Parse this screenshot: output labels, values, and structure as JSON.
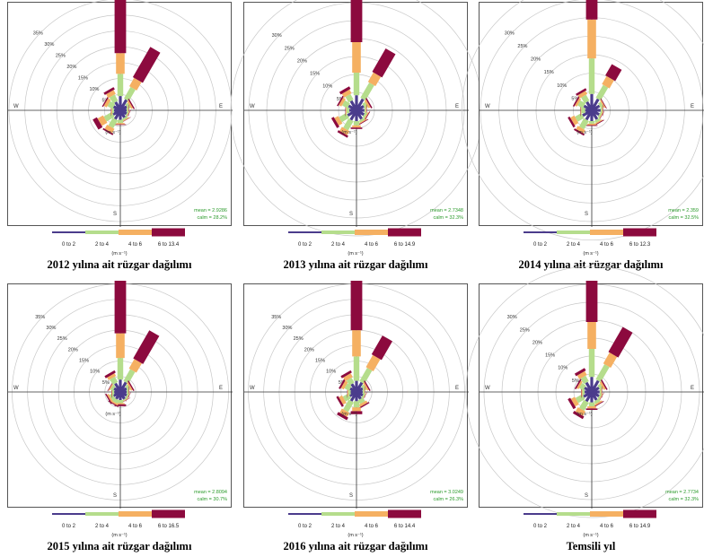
{
  "colors": {
    "bin1": "#4b3c8c",
    "bin2": "#b5dd8c",
    "bin3": "#f5b062",
    "bin4": "#8c0a3e",
    "grid": "#c8c8c8",
    "axis": "#333333",
    "stats": "#2a9a2a"
  },
  "compass": {
    "w": "W",
    "e": "E",
    "s": "S"
  },
  "unit_label": "(m s⁻¹)",
  "chart_data": [
    {
      "type": "windrose",
      "caption": "2012 yılına ait rüzgar dağılımı",
      "legend_labels": [
        "0 to 2",
        "2 to 4",
        "4 to 6",
        "6 to 13.4"
      ],
      "ring_labels": [
        "5%",
        "10%",
        "15%",
        "20%",
        "25%",
        "30%",
        "35%"
      ],
      "mean": "mean = 2.9286",
      "calm": "calm = 28.2%",
      "max_pct": 35,
      "directions_deg": [
        0,
        30,
        60,
        90,
        120,
        150,
        180,
        210,
        240,
        270,
        300,
        330
      ],
      "cumulative_pct": [
        [
          4.5,
          11.5,
          18,
          36
        ],
        [
          3.8,
          8,
          11,
          22
        ],
        [
          2.3,
          3.2,
          3.8,
          4.2
        ],
        [
          2.0,
          2.4,
          2.6,
          2.7
        ],
        [
          2.2,
          2.6,
          2.8,
          2.9
        ],
        [
          2.6,
          3.2,
          3.5,
          3.6
        ],
        [
          3.0,
          4.0,
          4.4,
          4.6
        ],
        [
          3.2,
          6.0,
          7.5,
          8.0
        ],
        [
          2.6,
          5.5,
          7.5,
          9.0
        ],
        [
          2.0,
          2.6,
          2.9,
          3.0
        ],
        [
          2.4,
          4.2,
          5.2,
          5.6
        ],
        [
          3.0,
          5.2,
          6.6,
          7.4
        ]
      ]
    },
    {
      "type": "windrose",
      "caption": "2013 yılına ait rüzgar dağılımı",
      "legend_labels": [
        "0 to 2",
        "2 to 4",
        "4 to 6",
        "6 to 14.9"
      ],
      "ring_labels": [
        "5%",
        "10%",
        "15%",
        "20%",
        "25%",
        "30%"
      ],
      "mean": "mean = 2.7348",
      "calm": "calm = 32.3%",
      "max_pct": 31,
      "directions_deg": [
        0,
        30,
        60,
        90,
        120,
        150,
        180,
        210,
        240,
        270,
        300,
        330
      ],
      "cumulative_pct": [
        [
          4.2,
          10.5,
          19,
          31
        ],
        [
          3.6,
          8.5,
          11.5,
          19
        ],
        [
          2.3,
          3.2,
          3.8,
          4.2
        ],
        [
          2.2,
          2.6,
          2.8,
          2.9
        ],
        [
          2.4,
          3.0,
          3.3,
          3.5
        ],
        [
          2.8,
          3.4,
          3.7,
          3.9
        ],
        [
          3.0,
          4.2,
          4.8,
          5.2
        ],
        [
          3.1,
          6.0,
          7.3,
          7.9
        ],
        [
          2.8,
          5.2,
          6.4,
          7.2
        ],
        [
          2.0,
          2.8,
          3.0,
          3.1
        ],
        [
          2.5,
          4.2,
          5.0,
          5.4
        ],
        [
          3.0,
          4.8,
          6.0,
          6.8
        ]
      ]
    },
    {
      "type": "windrose",
      "caption": "2014 yılına ait rüzgar dağılımı",
      "legend_labels": [
        "0 to 2",
        "2 to 4",
        "4 to 6",
        "6 to 12.3"
      ],
      "ring_labels": [
        "5%",
        "10%",
        "15%",
        "20%",
        "25%",
        "30%"
      ],
      "mean": "mean = 2.359",
      "calm": "calm = 32.5%",
      "max_pct": 30,
      "directions_deg": [
        0,
        30,
        60,
        90,
        120,
        150,
        180,
        210,
        240,
        270,
        300,
        330
      ],
      "cumulative_pct": [
        [
          4.4,
          14,
          24.5,
          31
        ],
        [
          3.5,
          7.5,
          10,
          13.5
        ],
        [
          2.4,
          3.2,
          3.6,
          3.8
        ],
        [
          2.4,
          2.8,
          3.0,
          3.1
        ],
        [
          2.3,
          2.8,
          3.0,
          3.1
        ],
        [
          2.8,
          3.5,
          3.8,
          4.0
        ],
        [
          2.9,
          3.6,
          4.0,
          4.2
        ],
        [
          2.9,
          5.5,
          6.5,
          7.0
        ],
        [
          2.8,
          4.8,
          6.0,
          6.6
        ],
        [
          1.8,
          2.8,
          3.0,
          3.1
        ],
        [
          2.4,
          4.0,
          4.6,
          5.0
        ],
        [
          2.6,
          4.4,
          5.4,
          6.0
        ]
      ]
    },
    {
      "type": "windrose",
      "caption": "2015 yılına ait rüzgar dağılımı",
      "legend_labels": [
        "0 to 2",
        "2 to 4",
        "4 to 6",
        "6 to 16.5"
      ],
      "ring_labels": [
        "5%",
        "10%",
        "15%",
        "20%",
        "25%",
        "30%",
        "35%"
      ],
      "mean": "mean = 2.8094",
      "calm": "calm = 30.7%",
      "max_pct": 36,
      "directions_deg": [
        0,
        30,
        60,
        90,
        120,
        150,
        180,
        210,
        240,
        270,
        300,
        330
      ],
      "cumulative_pct": [
        [
          4.0,
          11,
          19,
          36
        ],
        [
          3.6,
          8,
          11.5,
          22
        ],
        [
          2.3,
          3.2,
          3.8,
          4.2
        ],
        [
          2.1,
          2.6,
          2.8,
          2.9
        ],
        [
          2.3,
          2.8,
          3.0,
          3.1
        ],
        [
          2.6,
          3.0,
          3.2,
          3.3
        ],
        [
          2.6,
          3.6,
          4.0,
          4.6
        ],
        [
          2.6,
          3.8,
          4.3,
          4.6
        ],
        [
          2.5,
          3.6,
          4.2,
          4.6
        ],
        [
          2.0,
          2.6,
          2.8,
          2.9
        ],
        [
          2.3,
          3.2,
          3.6,
          3.8
        ],
        [
          3.2,
          5.2,
          6.2,
          7.0
        ]
      ]
    },
    {
      "type": "windrose",
      "caption": "2016 yılına ait rüzgar dağılımı",
      "legend_labels": [
        "0 to 2",
        "2 to 4",
        "4 to 6",
        "6 to 14.4"
      ],
      "ring_labels": [
        "5%",
        "10%",
        "15%",
        "20%",
        "25%",
        "30%",
        "35%"
      ],
      "mean": "mean = 3.0249",
      "calm": "calm = 26.3%",
      "max_pct": 36,
      "directions_deg": [
        0,
        30,
        60,
        90,
        120,
        150,
        180,
        210,
        240,
        270,
        300,
        330
      ],
      "cumulative_pct": [
        [
          3.6,
          11.5,
          20,
          36
        ],
        [
          3.5,
          8.5,
          13,
          20
        ],
        [
          2.3,
          3.2,
          3.8,
          4.2
        ],
        [
          2.0,
          2.5,
          2.7,
          2.8
        ],
        [
          2.3,
          2.8,
          3.0,
          3.1
        ],
        [
          2.6,
          4.0,
          4.8,
          5.2
        ],
        [
          3.0,
          5.0,
          6.2,
          7.2
        ],
        [
          3.4,
          7.0,
          8.5,
          9.5
        ],
        [
          2.5,
          4.6,
          5.8,
          6.5
        ],
        [
          1.9,
          2.6,
          2.9,
          3.0
        ],
        [
          2.3,
          4.0,
          5.0,
          5.6
        ],
        [
          3.0,
          4.8,
          6.2,
          7.0
        ]
      ]
    },
    {
      "type": "windrose",
      "caption": "Temsili yıl",
      "legend_labels": [
        "0 to 2",
        "2 to 4",
        "4 to 6",
        "6 to 14.9"
      ],
      "ring_labels": [
        "5%",
        "10%",
        "15%",
        "20%",
        "25%",
        "30%"
      ],
      "mean": "mean = 2.7734",
      "calm": "calm = 32.3%",
      "max_pct": 31,
      "directions_deg": [
        0,
        30,
        60,
        90,
        120,
        150,
        180,
        210,
        240,
        270,
        300,
        330
      ],
      "cumulative_pct": [
        [
          4.2,
          12,
          19.5,
          31
        ],
        [
          3.6,
          8.5,
          12,
          20
        ],
        [
          2.3,
          3.2,
          3.8,
          4.2
        ],
        [
          2.2,
          2.6,
          2.8,
          2.9
        ],
        [
          2.3,
          2.8,
          3.0,
          3.1
        ],
        [
          2.6,
          3.4,
          3.8,
          4.0
        ],
        [
          2.9,
          4.0,
          4.6,
          5.0
        ],
        [
          3.0,
          5.6,
          7.0,
          7.8
        ],
        [
          2.6,
          4.8,
          6.0,
          6.8
        ],
        [
          2.0,
          2.6,
          2.9,
          3.0
        ],
        [
          2.3,
          3.6,
          4.2,
          4.6
        ],
        [
          3.0,
          4.8,
          6.0,
          6.8
        ]
      ]
    }
  ]
}
